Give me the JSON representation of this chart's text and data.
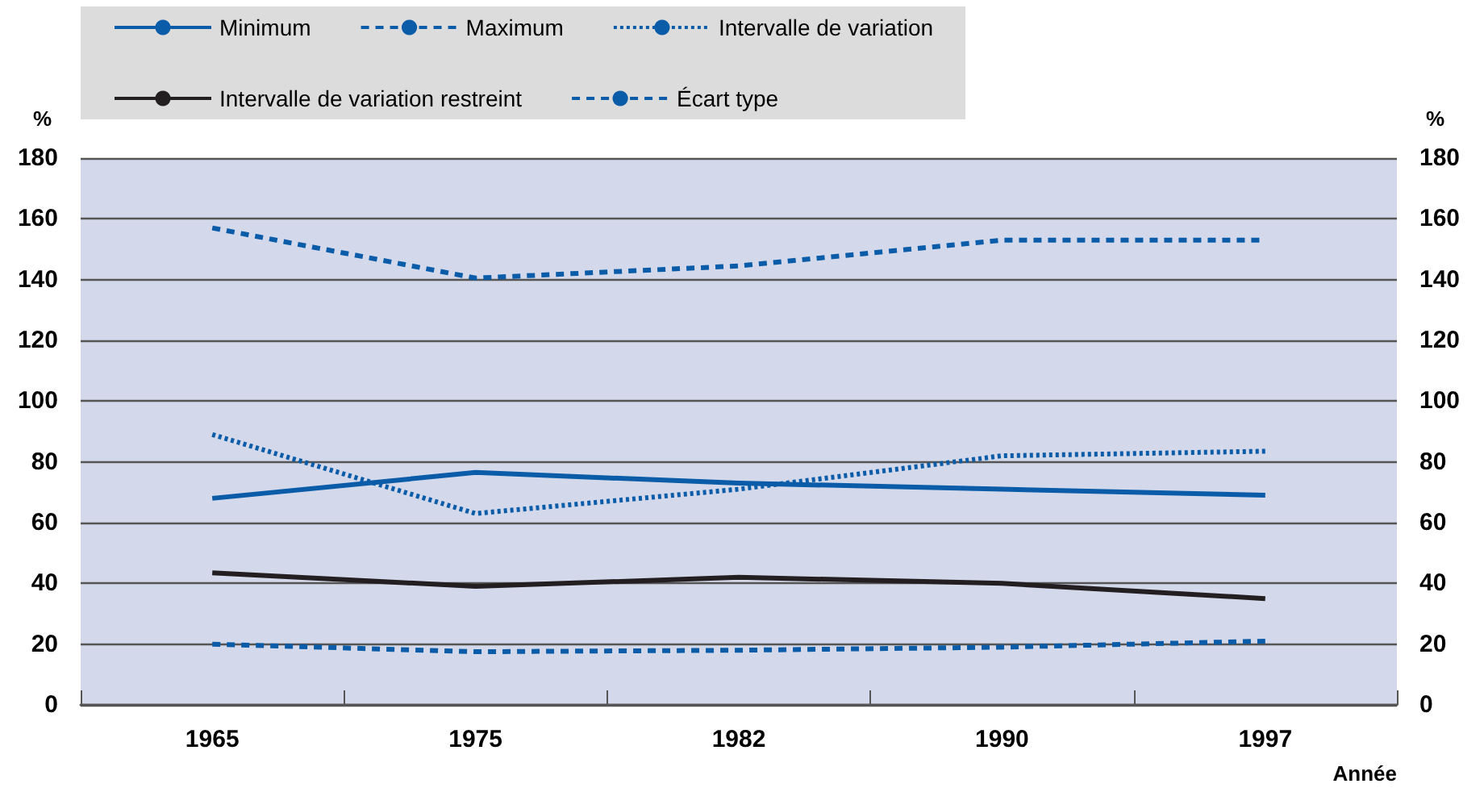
{
  "chart_data": {
    "type": "line",
    "xlabel": "Année",
    "ylabel": "%",
    "y2label": "%",
    "categories": [
      "1965",
      "1975",
      "1982",
      "1990",
      "1997"
    ],
    "series": [
      {
        "name": "Minimum",
        "color": "#0a5ca8",
        "line_style": "solid",
        "values": [
          68,
          76.5,
          73,
          71,
          69
        ]
      },
      {
        "name": "Maximum",
        "color": "#0a5ca8",
        "line_style": "dashed",
        "values": [
          157,
          140.5,
          144.5,
          153,
          153
        ]
      },
      {
        "name": "Intervalle de variation",
        "color": "#0a5ca8",
        "line_style": "dotted",
        "values": [
          89,
          63,
          71,
          82,
          83.5
        ]
      },
      {
        "name": "Intervalle de variation restreint",
        "color": "#231f20",
        "line_style": "solid",
        "values": [
          43.5,
          39,
          42,
          40,
          35
        ]
      },
      {
        "name": "Écart type",
        "color": "#0a5ca8",
        "line_style": "dashed",
        "values": [
          20,
          17.5,
          18,
          19,
          21
        ]
      }
    ],
    "ylim": [
      0,
      180
    ],
    "yticks": [
      0,
      20,
      40,
      60,
      80,
      100,
      120,
      140,
      160,
      180
    ],
    "y2lim": [
      0,
      180
    ],
    "y2ticks": [
      0,
      20,
      40,
      60,
      80,
      100,
      120,
      140,
      160,
      180
    ],
    "grid": "y",
    "legend": "top",
    "marker": "none"
  }
}
